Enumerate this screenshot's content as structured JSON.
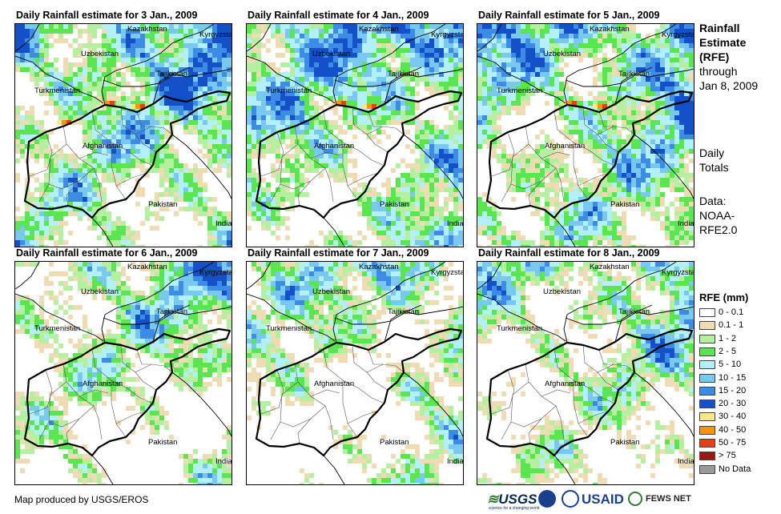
{
  "panels": [
    {
      "title": "Daily Rainfall estimate for 3 Jan., 2009",
      "intensity": 3
    },
    {
      "title": "Daily Rainfall estimate for 4 Jan., 2009",
      "intensity": 2
    },
    {
      "title": "Daily Rainfall estimate for 5 Jan., 2009",
      "intensity": 2
    },
    {
      "title": "Daily Rainfall estimate for 6 Jan., 2009",
      "intensity": 1
    },
    {
      "title": "Daily Rainfall estimate for 7 Jan., 2009",
      "intensity": 1
    },
    {
      "title": "Daily Rainfall estimate for 8 Jan., 2009",
      "intensity": 1
    }
  ],
  "map_labels": {
    "kazakhstan": "Kazakhstan",
    "kyrgyzstan": "Kyrgyzstan",
    "uzbekistan": "Uzbekistan",
    "tajikistan": "Tajikistan",
    "turkmenistan": "Turkmenistan",
    "afghanistan": "Afghanistan",
    "pakistan": "Pakistan",
    "india": "India"
  },
  "side": {
    "heading": "Rainfall Estimate (RFE)",
    "heading_line1": "Rainfall",
    "heading_line2": "Estimate",
    "heading_line3": "(RFE)",
    "through": "through",
    "date": "Jan 8, 2009",
    "daily1": "Daily",
    "daily2": "Totals",
    "data1": "Data:",
    "data2": "NOAA-",
    "data3": "RFE2.0"
  },
  "legend": {
    "title": "RFE (mm)",
    "items": [
      {
        "label": "0 - 0.1",
        "color": "#ffffff"
      },
      {
        "label": "0.1 - 1",
        "color": "#f0dcb4"
      },
      {
        "label": "1 - 2",
        "color": "#b4f0a0"
      },
      {
        "label": "2 - 5",
        "color": "#5ae650"
      },
      {
        "label": "5 - 10",
        "color": "#b4f0fa"
      },
      {
        "label": "10 - 15",
        "color": "#78c8f0"
      },
      {
        "label": "15 - 20",
        "color": "#3c8ce6"
      },
      {
        "label": "20 - 30",
        "color": "#1450c8"
      },
      {
        "label": "30 - 40",
        "color": "#fae68c"
      },
      {
        "label": "40 - 50",
        "color": "#fa9600"
      },
      {
        "label": "50 - 75",
        "color": "#f03c14"
      },
      {
        "label": "> 75",
        "color": "#a01414"
      },
      {
        "label": "No Data",
        "color": "#999999"
      }
    ]
  },
  "footer": {
    "credit": "Map produced by USGS/EROS"
  },
  "logos": {
    "usgs": "USGS",
    "usgs_tag": "science for a changing world",
    "usaid": "USAID",
    "fews": "FEWS NET"
  }
}
